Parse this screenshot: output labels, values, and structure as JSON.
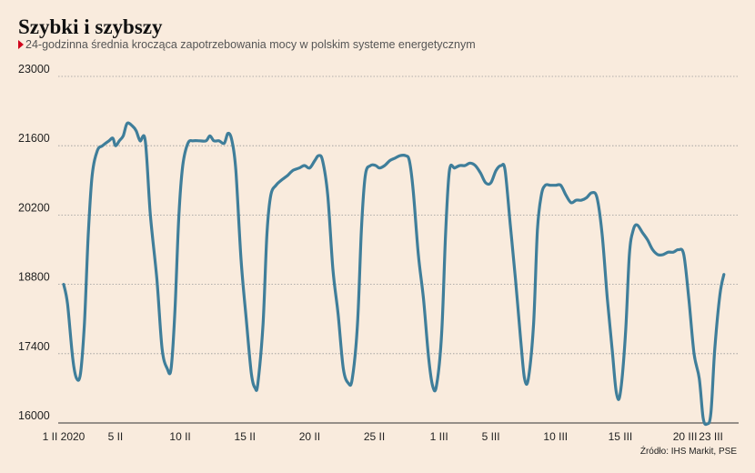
{
  "chart_data": {
    "type": "line",
    "title": "Szybki i szybszy",
    "subtitle": "24-godzinna średnia krocząca zapotrzebowania mocy w polskim systeme energetycznym",
    "source": "Źródło: IHS Markit, PSE",
    "xlabel": "",
    "ylabel": "",
    "ylim": [
      16000,
      23000
    ],
    "xlim": [
      1,
      53
    ],
    "yticks": [
      16000,
      17400,
      18800,
      20200,
      21600,
      23000
    ],
    "grid": true,
    "line_color": "#3f7e9a",
    "xticks": [
      {
        "x": 1,
        "label": "1 II 2020"
      },
      {
        "x": 5,
        "label": "5 II"
      },
      {
        "x": 10,
        "label": "10 II"
      },
      {
        "x": 15,
        "label": "15 II"
      },
      {
        "x": 20,
        "label": "20 II"
      },
      {
        "x": 25,
        "label": "25 II"
      },
      {
        "x": 30,
        "label": "1 III"
      },
      {
        "x": 34,
        "label": "5 III"
      },
      {
        "x": 39,
        "label": "10 III"
      },
      {
        "x": 44,
        "label": "15 III"
      },
      {
        "x": 49,
        "label": "20 III"
      },
      {
        "x": 51,
        "label": "23 III"
      }
    ],
    "series": [
      {
        "values": [
          [
            1.0,
            18800
          ],
          [
            1.3,
            18400
          ],
          [
            1.7,
            17300
          ],
          [
            2.0,
            16900
          ],
          [
            2.3,
            17000
          ],
          [
            2.6,
            18000
          ],
          [
            2.9,
            19800
          ],
          [
            3.2,
            21000
          ],
          [
            3.6,
            21500
          ],
          [
            4.0,
            21600
          ],
          [
            4.5,
            21700
          ],
          [
            4.8,
            21750
          ],
          [
            5.0,
            21600
          ],
          [
            5.3,
            21700
          ],
          [
            5.6,
            21800
          ],
          [
            5.9,
            22050
          ],
          [
            6.3,
            22000
          ],
          [
            6.6,
            21900
          ],
          [
            6.9,
            21700
          ],
          [
            7.3,
            21700
          ],
          [
            7.7,
            20200
          ],
          [
            8.2,
            18900
          ],
          [
            8.6,
            17500
          ],
          [
            9.0,
            17100
          ],
          [
            9.3,
            17100
          ],
          [
            9.6,
            18300
          ],
          [
            9.9,
            20200
          ],
          [
            10.2,
            21200
          ],
          [
            10.6,
            21650
          ],
          [
            11.0,
            21700
          ],
          [
            11.5,
            21700
          ],
          [
            12.0,
            21700
          ],
          [
            12.3,
            21800
          ],
          [
            12.6,
            21700
          ],
          [
            13.0,
            21700
          ],
          [
            13.4,
            21650
          ],
          [
            13.7,
            21850
          ],
          [
            14.0,
            21700
          ],
          [
            14.3,
            21100
          ],
          [
            14.7,
            19300
          ],
          [
            15.1,
            18100
          ],
          [
            15.5,
            17000
          ],
          [
            15.8,
            16700
          ],
          [
            16.0,
            16800
          ],
          [
            16.4,
            18000
          ],
          [
            16.7,
            19800
          ],
          [
            17.0,
            20600
          ],
          [
            17.4,
            20800
          ],
          [
            17.8,
            20900
          ],
          [
            18.3,
            21000
          ],
          [
            18.7,
            21100
          ],
          [
            19.2,
            21150
          ],
          [
            19.6,
            21200
          ],
          [
            20.0,
            21150
          ],
          [
            20.4,
            21300
          ],
          [
            20.7,
            21400
          ],
          [
            21.0,
            21300
          ],
          [
            21.4,
            20600
          ],
          [
            21.8,
            19100
          ],
          [
            22.2,
            18200
          ],
          [
            22.6,
            17100
          ],
          [
            23.0,
            16800
          ],
          [
            23.3,
            16900
          ],
          [
            23.7,
            18000
          ],
          [
            24.0,
            19900
          ],
          [
            24.3,
            21000
          ],
          [
            24.7,
            21200
          ],
          [
            25.1,
            21200
          ],
          [
            25.4,
            21150
          ],
          [
            25.8,
            21200
          ],
          [
            26.2,
            21300
          ],
          [
            26.6,
            21350
          ],
          [
            27.0,
            21400
          ],
          [
            27.4,
            21400
          ],
          [
            27.7,
            21300
          ],
          [
            28.0,
            20700
          ],
          [
            28.4,
            19400
          ],
          [
            28.8,
            18500
          ],
          [
            29.2,
            17300
          ],
          [
            29.5,
            16750
          ],
          [
            29.8,
            16750
          ],
          [
            30.2,
            17800
          ],
          [
            30.5,
            19800
          ],
          [
            30.8,
            21100
          ],
          [
            31.2,
            21150
          ],
          [
            31.6,
            21200
          ],
          [
            32.0,
            21200
          ],
          [
            32.4,
            21250
          ],
          [
            32.8,
            21200
          ],
          [
            33.2,
            21050
          ],
          [
            33.6,
            20850
          ],
          [
            34.0,
            20850
          ],
          [
            34.4,
            21100
          ],
          [
            34.8,
            21200
          ],
          [
            35.1,
            21100
          ],
          [
            35.5,
            20000
          ],
          [
            35.9,
            18900
          ],
          [
            36.3,
            17700
          ],
          [
            36.6,
            16900
          ],
          [
            36.9,
            16900
          ],
          [
            37.3,
            18000
          ],
          [
            37.6,
            19900
          ],
          [
            37.9,
            20600
          ],
          [
            38.2,
            20800
          ],
          [
            38.6,
            20800
          ],
          [
            39.0,
            20800
          ],
          [
            39.4,
            20800
          ],
          [
            39.8,
            20600
          ],
          [
            40.2,
            20450
          ],
          [
            40.6,
            20500
          ],
          [
            41.0,
            20500
          ],
          [
            41.4,
            20550
          ],
          [
            41.8,
            20650
          ],
          [
            42.2,
            20550
          ],
          [
            42.6,
            19800
          ],
          [
            43.0,
            18500
          ],
          [
            43.4,
            17400
          ],
          [
            43.7,
            16600
          ],
          [
            44.0,
            16600
          ],
          [
            44.4,
            17800
          ],
          [
            44.7,
            19400
          ],
          [
            45.0,
            19900
          ],
          [
            45.3,
            20000
          ],
          [
            45.7,
            19850
          ],
          [
            46.1,
            19700
          ],
          [
            46.5,
            19500
          ],
          [
            46.9,
            19400
          ],
          [
            47.3,
            19400
          ],
          [
            47.7,
            19450
          ],
          [
            48.1,
            19450
          ],
          [
            48.5,
            19500
          ],
          [
            48.9,
            19400
          ],
          [
            49.3,
            18500
          ],
          [
            49.7,
            17400
          ],
          [
            50.1,
            16900
          ],
          [
            50.4,
            16100
          ],
          [
            50.7,
            15980
          ],
          [
            51.0,
            16200
          ],
          [
            51.3,
            17500
          ],
          [
            51.7,
            18600
          ],
          [
            52.0,
            19000
          ]
        ]
      }
    ]
  }
}
